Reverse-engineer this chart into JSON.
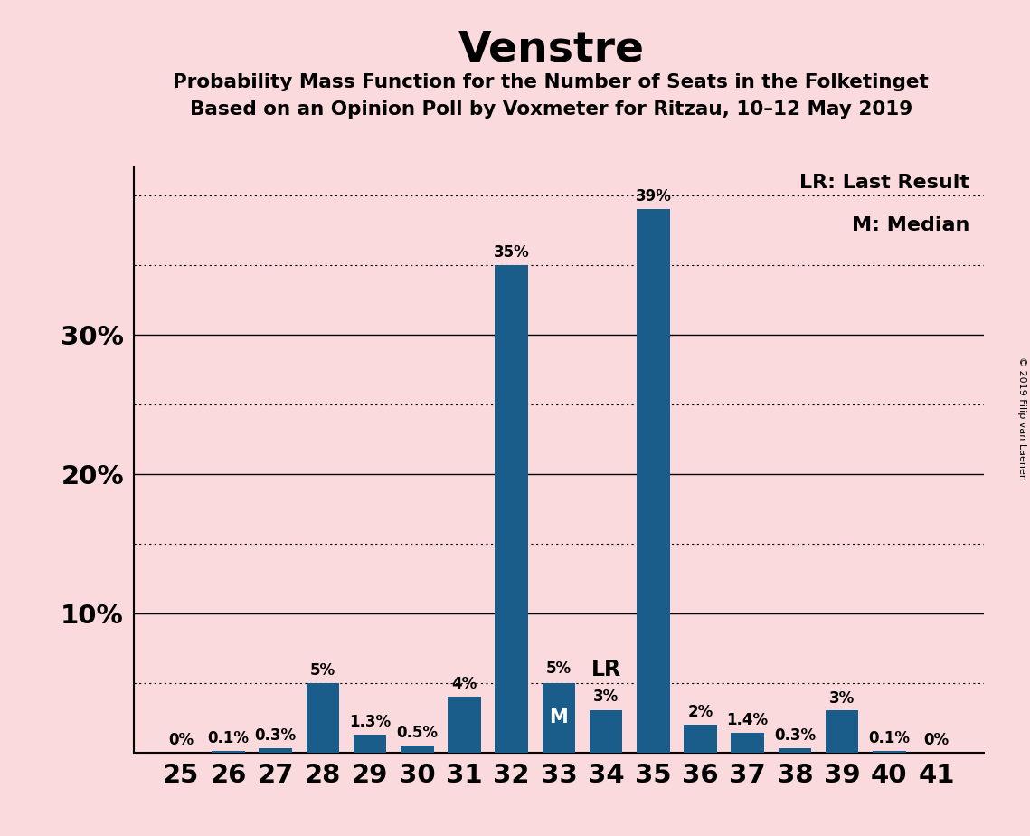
{
  "title": "Venstre",
  "subtitle1": "Probability Mass Function for the Number of Seats in the Folketinget",
  "subtitle2": "Based on an Opinion Poll by Voxmeter for Ritzau, 10–12 May 2019",
  "seats": [
    25,
    26,
    27,
    28,
    29,
    30,
    31,
    32,
    33,
    34,
    35,
    36,
    37,
    38,
    39,
    40,
    41
  ],
  "values": [
    0.0,
    0.1,
    0.3,
    5.0,
    1.3,
    0.5,
    4.0,
    35.0,
    5.0,
    3.0,
    39.0,
    2.0,
    1.4,
    0.3,
    3.0,
    0.1,
    0.0
  ],
  "labels": [
    "0%",
    "0.1%",
    "0.3%",
    "5%",
    "1.3%",
    "0.5%",
    "4%",
    "35%",
    "5%",
    "3%",
    "39%",
    "2%",
    "1.4%",
    "0.3%",
    "3%",
    "0.1%",
    "0%"
  ],
  "bar_color": "#1a5c8a",
  "background_color": "#fadadd",
  "median_seat": 33,
  "lr_seat": 34,
  "legend_lr": "LR: Last Result",
  "legend_m": "M: Median",
  "watermark": "© 2019 Filip van Laenen",
  "ylim": [
    0,
    42
  ],
  "solid_ticks": [
    10,
    20,
    30
  ],
  "dotted_ticks": [
    5,
    15,
    25,
    35,
    40
  ],
  "ytick_vals": [
    10,
    20,
    30
  ],
  "ytick_labels": [
    "10%",
    "20%",
    "30%"
  ]
}
